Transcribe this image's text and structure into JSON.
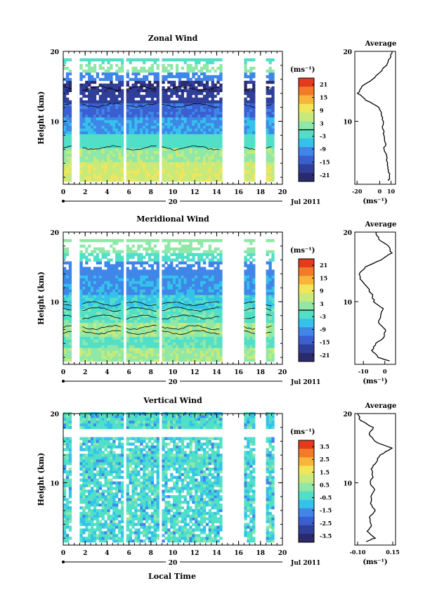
{
  "figure": {
    "x_axis_title": "Local Time",
    "date_label": "Jul 2011",
    "day_label": "20",
    "y_axis_title": "Height (km)",
    "average_title": "Average",
    "colorbar_unit": "(ms⁻¹)",
    "profile_unit": "(ms⁻¹)"
  },
  "colors": {
    "scale": [
      "#2b2a6c",
      "#2f3f9a",
      "#3a5fd0",
      "#3f86e8",
      "#35c2ea",
      "#52dfc8",
      "#8fe8a8",
      "#c7ea7a",
      "#f1e65a",
      "#f8b53a",
      "#f27b2a",
      "#e33b1c"
    ],
    "frame": "#000000",
    "contour": "#000000"
  },
  "chart_data": [
    {
      "type": "heatmap",
      "name": "zonal-wind",
      "title": "Zonal Wind",
      "xlabel": "",
      "ylabel": "Height (km)",
      "xlim": [
        0,
        20
      ],
      "ylim": [
        1,
        20
      ],
      "xticks": [
        "0",
        "2",
        "4",
        "6",
        "8",
        "10",
        "12",
        "14",
        "16",
        "18",
        "20"
      ],
      "yticks": [
        "10",
        "20"
      ],
      "colorbar_ticks": [
        "21",
        "15",
        "9",
        "3",
        "-3",
        "-9",
        "-15",
        "-21"
      ],
      "colorbar_range": [
        -24,
        24
      ],
      "zero_line": 0,
      "data_gaps_hours": [
        [
          0.8,
          1.6
        ],
        [
          5.4,
          5.7
        ],
        [
          8.7,
          9.0
        ],
        [
          14.4,
          16.4
        ],
        [
          17.6,
          18.5
        ],
        [
          19.2,
          20
        ]
      ],
      "profile_xticks": [
        "-20",
        "0",
        "10"
      ],
      "profile_xlim": [
        -22,
        14
      ],
      "profile": {
        "heights": [
          1.5,
          2,
          3,
          4,
          5,
          6,
          7,
          8,
          9,
          10,
          11,
          12,
          13,
          14,
          15,
          16,
          17,
          18,
          19,
          20
        ],
        "values": [
          8,
          9,
          8,
          7,
          6,
          4,
          5,
          4,
          3,
          3,
          2,
          -1,
          -12,
          -19,
          -16,
          -6,
          0,
          6,
          9,
          11
        ]
      }
    },
    {
      "type": "heatmap",
      "name": "meridional-wind",
      "title": "Meridional Wind",
      "xlabel": "",
      "ylabel": "Height (km)",
      "xlim": [
        0,
        20
      ],
      "ylim": [
        1,
        20
      ],
      "xticks": [
        "0",
        "2",
        "4",
        "6",
        "8",
        "10",
        "12",
        "14",
        "16",
        "18",
        "20"
      ],
      "yticks": [
        "10",
        "20"
      ],
      "colorbar_ticks": [
        "21",
        "15",
        "9",
        "3",
        "-3",
        "-9",
        "-15",
        "-21"
      ],
      "colorbar_range": [
        -24,
        24
      ],
      "zero_line": 0,
      "data_gaps_hours": [
        [
          0.8,
          1.6
        ],
        [
          5.4,
          5.7
        ],
        [
          8.7,
          9.0
        ],
        [
          14.4,
          16.4
        ],
        [
          17.6,
          18.5
        ],
        [
          19.2,
          20
        ]
      ],
      "profile_xticks": [
        "-10",
        "0"
      ],
      "profile_xlim": [
        -14,
        5
      ],
      "profile": {
        "heights": [
          1.5,
          2,
          3,
          4,
          5,
          6,
          7,
          8,
          9,
          10,
          11,
          12,
          13,
          14,
          15,
          16,
          17,
          18,
          19,
          20
        ],
        "values": [
          2,
          -3,
          -6,
          -4,
          0,
          0,
          -3,
          -2,
          -1,
          -5,
          -6,
          -8,
          -11,
          -12,
          -9,
          -2,
          3,
          2,
          -3,
          -4
        ]
      }
    },
    {
      "type": "heatmap",
      "name": "vertical-wind",
      "title": "Vertical Wind",
      "xlabel": "Local Time",
      "ylabel": "Height (km)",
      "xlim": [
        0,
        20
      ],
      "ylim": [
        1,
        20
      ],
      "xticks": [
        "0",
        "2",
        "4",
        "6",
        "8",
        "10",
        "12",
        "14",
        "16",
        "18",
        "20"
      ],
      "yticks": [
        "10",
        "20"
      ],
      "colorbar_ticks": [
        "3.5",
        "2.5",
        "1.5",
        "0.5",
        "-0.5",
        "-1.5",
        "-2.5",
        "-3.5"
      ],
      "colorbar_range": [
        -4,
        4
      ],
      "zero_line": null,
      "data_gaps_hours": [
        [
          0.8,
          1.6
        ],
        [
          5.4,
          5.7
        ],
        [
          8.7,
          9.0
        ],
        [
          14.4,
          16.4
        ],
        [
          17.6,
          18.5
        ],
        [
          19.2,
          20
        ]
      ],
      "profile_xticks": [
        "-0.10",
        "0.15"
      ],
      "profile_xlim": [
        -0.12,
        0.17
      ],
      "profile": {
        "heights": [
          1.5,
          2,
          3,
          4,
          5,
          6,
          7,
          8,
          9,
          10,
          11,
          12,
          13,
          14,
          15,
          16,
          17,
          18,
          19,
          20
        ],
        "values": [
          -0.04,
          0.02,
          -0.03,
          0.0,
          -0.02,
          0.03,
          -0.01,
          0.0,
          0.02,
          -0.01,
          0.01,
          0.0,
          0.03,
          0.06,
          0.14,
          0.02,
          -0.02,
          0.01,
          -0.08,
          -0.1
        ]
      }
    }
  ]
}
